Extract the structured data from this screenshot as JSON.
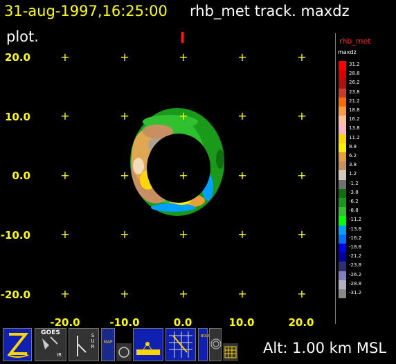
{
  "header": {
    "datetime": "31-aug-1997,16:25:00",
    "product": "rhb_met track.  maxdz",
    "line2": "plot."
  },
  "axes": {
    "y_ticks": [
      "20.0",
      "10.0",
      "0.0",
      "-10.0",
      "-20.0"
    ],
    "x_ticks": [
      "-20.0",
      "-10.0",
      "0.0",
      "10.0",
      "20.0"
    ]
  },
  "legend": {
    "title": "rhb_met",
    "field": "maxdz",
    "levels": [
      "31.2",
      "28.8",
      "26.2",
      "23.8",
      "21.2",
      "18.8",
      "16.2",
      "13.8",
      "11.2",
      "8.8",
      "6.2",
      "3.8",
      "1.2",
      "-1.2",
      "-3.8",
      "-6.2",
      "-8.8",
      "-11.2",
      "-13.8",
      "-16.2",
      "-18.8",
      "-21.2",
      "-23.8",
      "-26.2",
      "-28.8",
      "-31.2"
    ],
    "colors": [
      "#ff0000",
      "#d80000",
      "#b01010",
      "#c83c28",
      "#ff6a00",
      "#ff9a40",
      "#ffc0a0",
      "#ffb6c1",
      "#ffd700",
      "#ffee00",
      "#e8a038",
      "#c89060",
      "#d0c8b8",
      "#707070",
      "#107010",
      "#189818",
      "#30c030",
      "#00ff00",
      "#00a0ff",
      "#0070ff",
      "#0000e8",
      "#0000a0",
      "#303070",
      "#8080c0",
      "#b0b0c0",
      "#888888"
    ]
  },
  "status": {
    "altitude": "Alt: 1.00 km MSL"
  },
  "toolbar": {
    "goes_label": "GOES",
    "ir_label": "IR",
    "sur_label": "S U R",
    "map_label": "MAP",
    "bounds_label": "BOUNDS"
  }
}
